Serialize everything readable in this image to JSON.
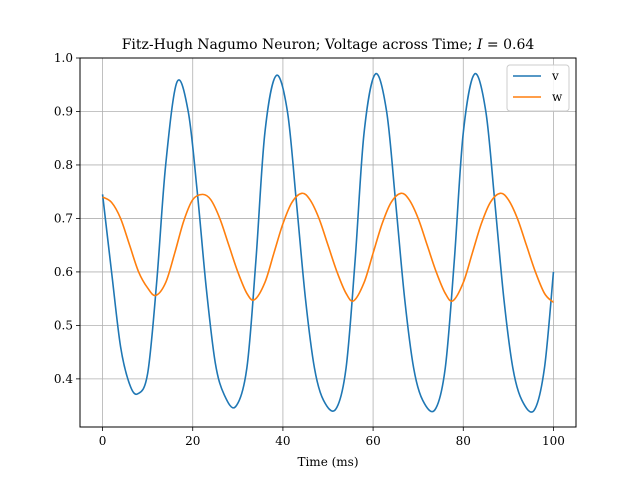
{
  "chart_data": {
    "type": "line",
    "title": "Fitz-Hugh Nagumo Neuron; Voltage across Time; I = 0.64",
    "title_parts": {
      "prefix": "Fitz-Hugh Nagumo Neuron; Voltage across Time; ",
      "var": "I",
      "suffix": " = 0.64"
    },
    "xlabel": "Time (ms)",
    "ylabel": "",
    "xlim": [
      -5,
      105
    ],
    "ylim": [
      0.31,
      1.0
    ],
    "xticks": [
      0,
      20,
      40,
      60,
      80,
      100
    ],
    "yticks": [
      0.4,
      0.5,
      0.6,
      0.7,
      0.8,
      0.9,
      1.0
    ],
    "xtick_labels": [
      "0",
      "20",
      "40",
      "60",
      "80",
      "100"
    ],
    "ytick_labels": [
      "0.4",
      "0.5",
      "0.6",
      "0.7",
      "0.8",
      "0.9",
      "1.0"
    ],
    "grid": true,
    "legend": "top-right",
    "series": [
      {
        "name": "v",
        "color": "#1f77b4",
        "x": [
          0,
          2,
          4,
          6,
          7.8,
          10,
          12,
          14,
          16.5,
          19,
          21,
          23,
          25,
          27,
          29.5,
          32,
          34,
          36,
          38.5,
          41,
          43,
          45,
          47,
          49,
          51.7,
          54,
          56,
          58,
          60.5,
          63,
          65,
          67,
          69,
          71,
          73.7,
          76,
          78,
          80,
          82.5,
          85,
          87,
          89,
          91,
          93,
          95.7,
          98,
          100
        ],
        "y": [
          0.745,
          0.6,
          0.46,
          0.39,
          0.372,
          0.41,
          0.58,
          0.8,
          0.955,
          0.9,
          0.75,
          0.57,
          0.43,
          0.37,
          0.348,
          0.42,
          0.62,
          0.86,
          0.967,
          0.9,
          0.73,
          0.55,
          0.42,
          0.36,
          0.343,
          0.42,
          0.62,
          0.86,
          0.97,
          0.9,
          0.73,
          0.55,
          0.42,
          0.36,
          0.342,
          0.42,
          0.62,
          0.86,
          0.97,
          0.9,
          0.73,
          0.55,
          0.42,
          0.36,
          0.341,
          0.42,
          0.6
        ]
      },
      {
        "name": "w",
        "color": "#ff7f0e",
        "x": [
          0,
          2,
          4,
          6,
          8,
          10,
          11.8,
          14,
          16,
          18,
          20,
          22.2,
          24,
          26,
          28,
          30,
          32,
          33.7,
          36,
          38,
          40,
          42,
          44.2,
          46,
          48,
          50,
          52,
          54,
          55.7,
          58,
          60,
          62,
          64,
          66.2,
          68,
          70,
          72,
          74,
          76,
          77.7,
          80,
          82,
          84,
          86,
          88.2,
          90,
          92,
          94,
          96,
          98,
          99.7,
          100
        ],
        "y": [
          0.74,
          0.73,
          0.7,
          0.65,
          0.6,
          0.57,
          0.556,
          0.58,
          0.635,
          0.695,
          0.735,
          0.745,
          0.735,
          0.7,
          0.65,
          0.6,
          0.56,
          0.548,
          0.58,
          0.635,
          0.69,
          0.73,
          0.747,
          0.735,
          0.7,
          0.65,
          0.6,
          0.56,
          0.546,
          0.58,
          0.635,
          0.69,
          0.73,
          0.747,
          0.735,
          0.7,
          0.65,
          0.6,
          0.56,
          0.546,
          0.58,
          0.635,
          0.69,
          0.73,
          0.747,
          0.735,
          0.7,
          0.65,
          0.6,
          0.56,
          0.545,
          0.545
        ]
      }
    ]
  }
}
